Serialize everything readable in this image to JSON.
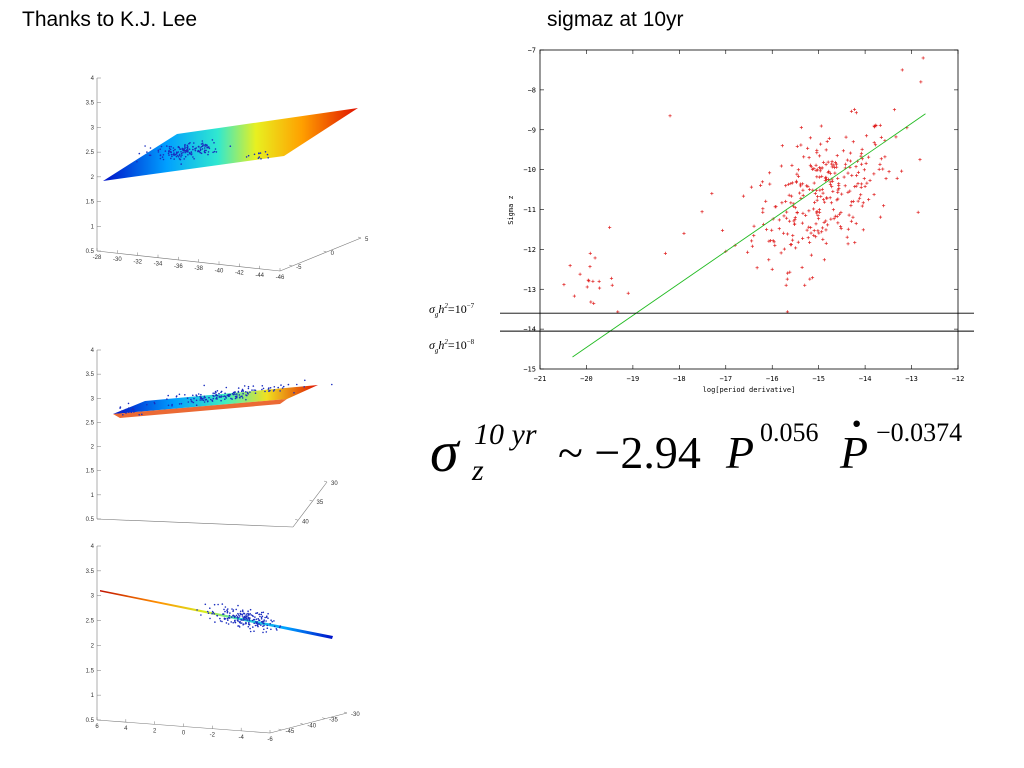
{
  "slide": {
    "title_left": "Thanks to K.J. Lee",
    "title_right": "sigmaz at 10yr"
  },
  "colors": {
    "scatter_red": "#e02020",
    "fit_green": "#22bb22",
    "surface_points_blue": "#1a2dbf"
  },
  "chart_data": [
    {
      "type": "scatter",
      "xlabel": "log[period derivative]",
      "ylabel": "Sigma z",
      "xlim": [
        -21,
        -12
      ],
      "ylim": [
        -15,
        -7
      ],
      "xticks": [
        "-21",
        "-20",
        "-19",
        "-18",
        "-17",
        "-16",
        "-15",
        "-14",
        "-13",
        "-12"
      ],
      "yticks": [
        "-15",
        "-14",
        "-13",
        "-12",
        "-11",
        "-10",
        "-9",
        "-8",
        "-7"
      ],
      "marker": "+",
      "fit_line": {
        "x": [
          -20.3,
          -12.7
        ],
        "y": [
          -14.7,
          -8.6
        ]
      },
      "hlines": [
        {
          "y": -13.6,
          "label": {
            "sym": "σ",
            "sub": "g",
            "mid": "h",
            "sup": "2",
            "eq": "=10",
            "exp": "−7"
          }
        },
        {
          "y": -14.05,
          "label": {
            "sym": "σ",
            "sub": "g",
            "mid": "h",
            "sup": "2",
            "eq": "=10",
            "exp": "−8"
          }
        }
      ],
      "clusters": [
        {
          "cx": -14.9,
          "cy": -10.6,
          "sx": 0.75,
          "sy": 0.85,
          "n": 300,
          "rho": 0.45
        },
        {
          "cx": -20.0,
          "cy": -12.8,
          "sx": 0.3,
          "sy": 0.3,
          "n": 18,
          "rho": 0.0
        }
      ],
      "points": [
        [
          -18.2,
          -8.65
        ],
        [
          -19.5,
          -11.45
        ],
        [
          -19.1,
          -13.1
        ],
        [
          -18.3,
          -12.1
        ],
        [
          -17.9,
          -11.6
        ],
        [
          -17.3,
          -10.6
        ],
        [
          -12.75,
          -7.2
        ],
        [
          -12.8,
          -7.8
        ],
        [
          -13.2,
          -7.5
        ],
        [
          -15.7,
          -12.9
        ],
        [
          -15.3,
          -12.9
        ],
        [
          -16.0,
          -12.5
        ],
        [
          -17.0,
          -12.05
        ],
        [
          -16.8,
          -11.9
        ],
        [
          -13.1,
          -8.95
        ]
      ]
    },
    {
      "type": "surface3d",
      "yticks": [
        "4",
        "3.5",
        "3",
        "2.5",
        "2",
        "1.5",
        "1",
        "0.5"
      ],
      "xticks": [
        "-28",
        "-30",
        "-32",
        "-34",
        "-36",
        "-38",
        "-40",
        "-42",
        "-44",
        "-46"
      ],
      "zticks": [
        "5",
        "0",
        "-5"
      ]
    },
    {
      "type": "surface3d",
      "yticks": [
        "4",
        "3.5",
        "3",
        "2.5",
        "2",
        "1.5",
        "1",
        "0.5"
      ],
      "zticks": [
        "30",
        "35",
        "40"
      ]
    },
    {
      "type": "surface3d",
      "yticks": [
        "4",
        "3.5",
        "3",
        "2.5",
        "2",
        "1.5",
        "1",
        "0.5"
      ],
      "xticks": [
        "6",
        "4",
        "2",
        "0",
        "-2",
        "-4",
        "-6"
      ],
      "zticks": [
        "-30",
        "-35",
        "-40",
        "-45"
      ]
    }
  ],
  "formula": {
    "sym": "σ",
    "sup": "10 yr",
    "sub": "z",
    "rel": "~ −2.94",
    "var1": "P",
    "exp1": "0.056",
    "var2": "P",
    "exp2": "−0.0374"
  }
}
